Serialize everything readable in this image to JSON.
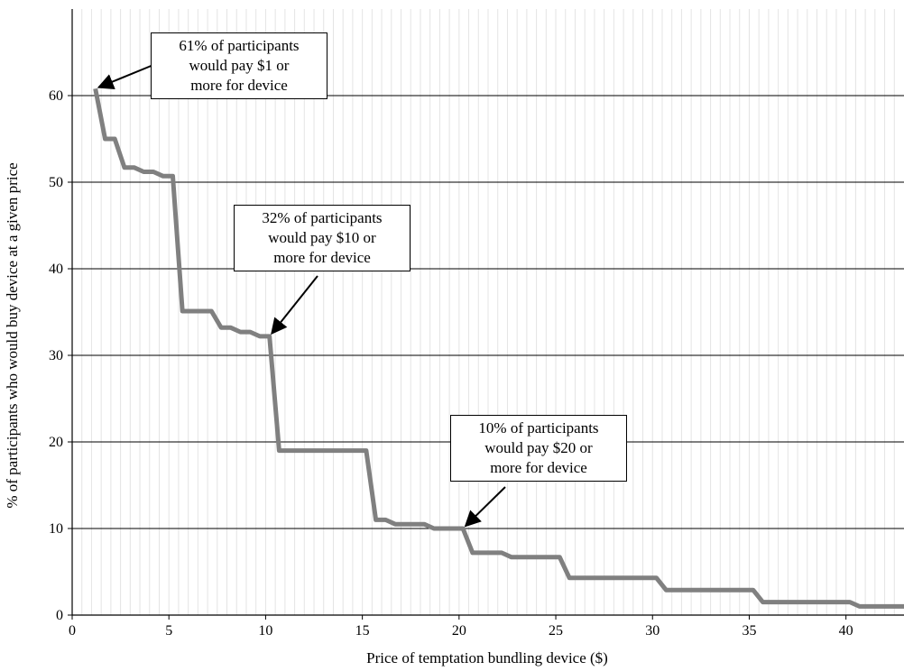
{
  "chart_data": {
    "type": "line",
    "title": "",
    "xlabel": "Price of temptation bundling device ($)",
    "ylabel": "% of participants who would buy device at a given price",
    "xlim": [
      0,
      43
    ],
    "ylim": [
      0,
      70
    ],
    "xticks": [
      "0",
      "5",
      "10",
      "15",
      "20",
      "25",
      "30",
      "35",
      "40"
    ],
    "yticks": [
      "0",
      "10",
      "20",
      "30",
      "40",
      "50",
      "60"
    ],
    "series": [
      {
        "color": "#808080",
        "points": [
          [
            1.2,
            60.8
          ],
          [
            1.7,
            55
          ],
          [
            2.2,
            55
          ],
          [
            2.7,
            51.7
          ],
          [
            3.2,
            51.7
          ],
          [
            3.7,
            51.2
          ],
          [
            4.2,
            51.2
          ],
          [
            4.7,
            50.7
          ],
          [
            5.2,
            50.7
          ],
          [
            5.7,
            35.1
          ],
          [
            7.2,
            35.1
          ],
          [
            7.7,
            33.2
          ],
          [
            8.2,
            33.2
          ],
          [
            8.7,
            32.7
          ],
          [
            9.2,
            32.7
          ],
          [
            9.7,
            32.2
          ],
          [
            10.2,
            32.2
          ],
          [
            10.7,
            19
          ],
          [
            15.2,
            19
          ],
          [
            15.7,
            11
          ],
          [
            16.2,
            11
          ],
          [
            16.7,
            10.5
          ],
          [
            18.2,
            10.5
          ],
          [
            18.7,
            10
          ],
          [
            20.2,
            10
          ],
          [
            20.7,
            7.2
          ],
          [
            22.2,
            7.2
          ],
          [
            22.7,
            6.7
          ],
          [
            25.2,
            6.7
          ],
          [
            25.7,
            4.3
          ],
          [
            30.2,
            4.3
          ],
          [
            30.7,
            2.9
          ],
          [
            35.2,
            2.9
          ],
          [
            35.7,
            1.5
          ],
          [
            40.2,
            1.5
          ],
          [
            40.7,
            1
          ],
          [
            43,
            1
          ]
        ]
      }
    ],
    "annotations": [
      {
        "lines": [
          "61% of participants",
          "would pay $1 or",
          "more for device"
        ],
        "target": [
          1.2,
          60.8
        ]
      },
      {
        "lines": [
          "32% of participants",
          "would pay $10 or",
          "more for device"
        ],
        "target": [
          10.2,
          32.2
        ]
      },
      {
        "lines": [
          "10% of participants",
          "would pay $20 or",
          "more for device"
        ],
        "target": [
          20.2,
          10
        ]
      }
    ]
  }
}
